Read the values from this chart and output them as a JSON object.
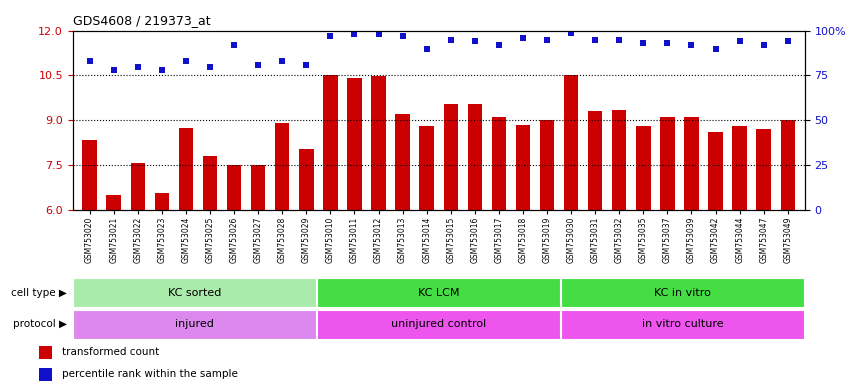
{
  "title": "GDS4608 / 219373_at",
  "samples": [
    "GSM753020",
    "GSM753021",
    "GSM753022",
    "GSM753023",
    "GSM753024",
    "GSM753025",
    "GSM753026",
    "GSM753027",
    "GSM753028",
    "GSM753029",
    "GSM753010",
    "GSM753011",
    "GSM753012",
    "GSM753013",
    "GSM753014",
    "GSM753015",
    "GSM753016",
    "GSM753017",
    "GSM753018",
    "GSM753019",
    "GSM753030",
    "GSM753031",
    "GSM753032",
    "GSM753035",
    "GSM753037",
    "GSM753039",
    "GSM753042",
    "GSM753044",
    "GSM753047",
    "GSM753049"
  ],
  "bar_values": [
    8.35,
    6.5,
    7.55,
    6.55,
    8.75,
    7.8,
    7.5,
    7.5,
    8.9,
    8.05,
    10.5,
    10.4,
    10.48,
    9.2,
    8.8,
    9.55,
    9.55,
    9.1,
    8.85,
    9.0,
    10.5,
    9.3,
    9.35,
    8.8,
    9.1,
    9.1,
    8.6,
    8.8,
    8.7,
    9.0
  ],
  "dot_values_pct": [
    83,
    78,
    80,
    78,
    83,
    80,
    92,
    81,
    83,
    81,
    97,
    98,
    98,
    97,
    90,
    95,
    94,
    92,
    96,
    95,
    99,
    95,
    95,
    93,
    93,
    92,
    90,
    94,
    92,
    94
  ],
  "bar_color": "#cc0000",
  "dot_color": "#1111cc",
  "ylim_left": [
    6,
    12
  ],
  "ylim_right": [
    0,
    100
  ],
  "yticks_left": [
    6,
    7.5,
    9,
    10.5,
    12
  ],
  "yticks_right": [
    0,
    25,
    50,
    75,
    100
  ],
  "dotted_lines_pct": [
    25,
    50,
    75
  ],
  "groups": [
    {
      "label": "KC sorted",
      "start": 0,
      "end": 10,
      "color": "#aaeaaa"
    },
    {
      "label": "KC LCM",
      "start": 10,
      "end": 20,
      "color": "#44dd44"
    },
    {
      "label": "KC in vitro",
      "start": 20,
      "end": 30,
      "color": "#44dd44"
    }
  ],
  "protocols": [
    {
      "label": "injured",
      "start": 0,
      "end": 10,
      "color": "#dd88ee"
    },
    {
      "label": "uninjured control",
      "start": 10,
      "end": 20,
      "color": "#ee55ee"
    },
    {
      "label": "in vitro culture",
      "start": 20,
      "end": 30,
      "color": "#ee55ee"
    }
  ],
  "legend_items": [
    {
      "label": "transformed count",
      "color": "#cc0000"
    },
    {
      "label": "percentile rank within the sample",
      "color": "#1111cc"
    }
  ],
  "cell_type_label": "cell type",
  "protocol_label": "protocol",
  "arrow": "▶"
}
